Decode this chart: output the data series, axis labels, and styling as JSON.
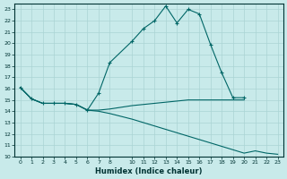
{
  "xlabel": "Humidex (Indice chaleur)",
  "bg_color": "#c8eaea",
  "grid_color": "#aad4d4",
  "line_color": "#006666",
  "xlim": [
    -0.5,
    23.5
  ],
  "ylim": [
    10,
    23.5
  ],
  "xticks": [
    0,
    1,
    2,
    3,
    4,
    5,
    6,
    7,
    8,
    10,
    11,
    12,
    13,
    14,
    15,
    16,
    17,
    18,
    19,
    20,
    21,
    22,
    23
  ],
  "yticks": [
    10,
    11,
    12,
    13,
    14,
    15,
    16,
    17,
    18,
    19,
    20,
    21,
    22,
    23
  ],
  "lines": [
    {
      "x": [
        0,
        1,
        2,
        3,
        4,
        5,
        6,
        7,
        8,
        10,
        11,
        12,
        13,
        14,
        15,
        16,
        17,
        18,
        19,
        20
      ],
      "y": [
        16.1,
        15.1,
        14.7,
        14.7,
        14.7,
        14.6,
        14.1,
        15.6,
        18.3,
        20.2,
        21.3,
        22.0,
        23.3,
        21.8,
        23.0,
        22.6,
        19.9,
        17.4,
        15.2,
        15.2
      ],
      "marker": true
    },
    {
      "x": [
        0,
        1,
        2,
        3,
        4,
        5,
        6,
        7,
        8,
        10,
        11,
        12,
        13,
        14,
        15,
        16,
        17,
        18,
        19,
        20
      ],
      "y": [
        16.1,
        15.1,
        14.7,
        14.7,
        14.7,
        14.6,
        14.1,
        14.1,
        14.2,
        14.5,
        14.6,
        14.7,
        14.8,
        14.9,
        15.0,
        15.0,
        15.0,
        15.0,
        15.0,
        15.0
      ],
      "marker": false
    },
    {
      "x": [
        0,
        1,
        2,
        3,
        4,
        5,
        6,
        7,
        8,
        10,
        11,
        12,
        13,
        14,
        15,
        16,
        17,
        18,
        19,
        20,
        21,
        22,
        23
      ],
      "y": [
        16.1,
        15.1,
        14.7,
        14.7,
        14.7,
        14.6,
        14.1,
        14.0,
        13.8,
        13.3,
        13.0,
        12.7,
        12.4,
        12.1,
        11.8,
        11.5,
        11.2,
        10.9,
        10.6,
        10.3,
        10.5,
        10.3,
        10.2
      ],
      "marker": false
    }
  ]
}
